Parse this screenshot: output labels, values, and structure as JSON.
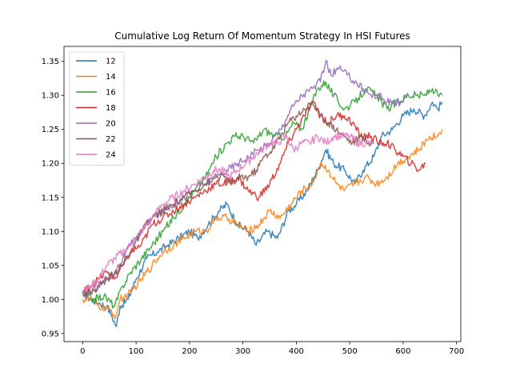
{
  "chart_data": {
    "type": "line",
    "title": "Cumulative Log Return Of Momentum Strategy In HSI Futures",
    "xlabel": "",
    "ylabel": "",
    "xlim": [
      -35,
      708
    ],
    "ylim": [
      0.938,
      1.372
    ],
    "xticks": [
      0,
      100,
      200,
      300,
      400,
      500,
      600,
      700
    ],
    "yticks": [
      0.95,
      1.0,
      1.05,
      1.1,
      1.15,
      1.2,
      1.25,
      1.3,
      1.35
    ],
    "ytick_labels": [
      "0.95",
      "1.00",
      "1.05",
      "1.10",
      "1.15",
      "1.20",
      "1.25",
      "1.30",
      "1.35"
    ],
    "grid": false,
    "legend": "top-left",
    "series": [
      {
        "name": "12",
        "color": "#1f77b4",
        "points": [
          [
            0,
            1.01
          ],
          [
            15,
            1.0
          ],
          [
            30,
            0.995
          ],
          [
            45,
            0.99
          ],
          [
            55,
            0.975
          ],
          [
            63,
            0.96
          ],
          [
            70,
            0.99
          ],
          [
            85,
            1.0
          ],
          [
            100,
            1.03
          ],
          [
            120,
            1.06
          ],
          [
            140,
            1.07
          ],
          [
            160,
            1.08
          ],
          [
            180,
            1.09
          ],
          [
            200,
            1.1
          ],
          [
            215,
            1.09
          ],
          [
            235,
            1.11
          ],
          [
            255,
            1.13
          ],
          [
            270,
            1.14
          ],
          [
            290,
            1.11
          ],
          [
            310,
            1.1
          ],
          [
            325,
            1.08
          ],
          [
            345,
            1.1
          ],
          [
            365,
            1.09
          ],
          [
            385,
            1.13
          ],
          [
            400,
            1.14
          ],
          [
            420,
            1.16
          ],
          [
            440,
            1.19
          ],
          [
            455,
            1.22
          ],
          [
            470,
            1.2
          ],
          [
            490,
            1.19
          ],
          [
            510,
            1.17
          ],
          [
            525,
            1.19
          ],
          [
            545,
            1.21
          ],
          [
            560,
            1.24
          ],
          [
            580,
            1.25
          ],
          [
            600,
            1.27
          ],
          [
            620,
            1.28
          ],
          [
            640,
            1.27
          ],
          [
            655,
            1.29
          ],
          [
            665,
            1.28
          ],
          [
            673,
            1.29
          ]
        ]
      },
      {
        "name": "14",
        "color": "#ff7f0e",
        "points": [
          [
            0,
            1.0
          ],
          [
            15,
            1.0
          ],
          [
            30,
            0.99
          ],
          [
            50,
            0.985
          ],
          [
            62,
            0.975
          ],
          [
            70,
            1.0
          ],
          [
            90,
            1.01
          ],
          [
            110,
            1.03
          ],
          [
            130,
            1.05
          ],
          [
            150,
            1.07
          ],
          [
            170,
            1.08
          ],
          [
            190,
            1.09
          ],
          [
            210,
            1.1
          ],
          [
            230,
            1.1
          ],
          [
            250,
            1.12
          ],
          [
            270,
            1.12
          ],
          [
            290,
            1.11
          ],
          [
            310,
            1.1
          ],
          [
            330,
            1.11
          ],
          [
            350,
            1.13
          ],
          [
            370,
            1.12
          ],
          [
            390,
            1.14
          ],
          [
            410,
            1.16
          ],
          [
            430,
            1.17
          ],
          [
            445,
            1.2
          ],
          [
            460,
            1.19
          ],
          [
            475,
            1.17
          ],
          [
            490,
            1.16
          ],
          [
            510,
            1.17
          ],
          [
            530,
            1.18
          ],
          [
            550,
            1.17
          ],
          [
            570,
            1.18
          ],
          [
            590,
            1.2
          ],
          [
            610,
            1.21
          ],
          [
            630,
            1.22
          ],
          [
            650,
            1.24
          ],
          [
            665,
            1.24
          ],
          [
            673,
            1.25
          ]
        ]
      },
      {
        "name": "16",
        "color": "#2ca02c",
        "points": [
          [
            0,
            1.01
          ],
          [
            20,
            1.0
          ],
          [
            40,
            1.005
          ],
          [
            60,
            0.99
          ],
          [
            75,
            1.02
          ],
          [
            90,
            1.04
          ],
          [
            110,
            1.06
          ],
          [
            130,
            1.08
          ],
          [
            150,
            1.1
          ],
          [
            170,
            1.12
          ],
          [
            190,
            1.14
          ],
          [
            210,
            1.16
          ],
          [
            230,
            1.18
          ],
          [
            250,
            1.21
          ],
          [
            270,
            1.23
          ],
          [
            285,
            1.24
          ],
          [
            300,
            1.24
          ],
          [
            320,
            1.23
          ],
          [
            340,
            1.25
          ],
          [
            360,
            1.24
          ],
          [
            380,
            1.24
          ],
          [
            395,
            1.26
          ],
          [
            410,
            1.25
          ],
          [
            425,
            1.28
          ],
          [
            440,
            1.31
          ],
          [
            455,
            1.32
          ],
          [
            470,
            1.3
          ],
          [
            490,
            1.28
          ],
          [
            510,
            1.29
          ],
          [
            530,
            1.31
          ],
          [
            550,
            1.3
          ],
          [
            570,
            1.28
          ],
          [
            590,
            1.29
          ],
          [
            610,
            1.3
          ],
          [
            625,
            1.3
          ],
          [
            640,
            1.3
          ],
          [
            655,
            1.31
          ],
          [
            665,
            1.3
          ],
          [
            673,
            1.3
          ]
        ]
      },
      {
        "name": "18",
        "color": "#d62728",
        "points": [
          [
            0,
            1.01
          ],
          [
            15,
            1.02
          ],
          [
            30,
            1.03
          ],
          [
            45,
            1.04
          ],
          [
            60,
            1.03
          ],
          [
            75,
            1.05
          ],
          [
            90,
            1.07
          ],
          [
            110,
            1.08
          ],
          [
            130,
            1.11
          ],
          [
            150,
            1.12
          ],
          [
            170,
            1.13
          ],
          [
            190,
            1.14
          ],
          [
            210,
            1.15
          ],
          [
            230,
            1.16
          ],
          [
            250,
            1.17
          ],
          [
            270,
            1.17
          ],
          [
            290,
            1.18
          ],
          [
            310,
            1.16
          ],
          [
            330,
            1.15
          ],
          [
            350,
            1.17
          ],
          [
            370,
            1.2
          ],
          [
            385,
            1.23
          ],
          [
            400,
            1.25
          ],
          [
            415,
            1.27
          ],
          [
            430,
            1.29
          ],
          [
            445,
            1.27
          ],
          [
            460,
            1.26
          ],
          [
            475,
            1.27
          ],
          [
            490,
            1.27
          ],
          [
            505,
            1.26
          ],
          [
            520,
            1.24
          ],
          [
            540,
            1.24
          ],
          [
            555,
            1.23
          ],
          [
            570,
            1.23
          ],
          [
            585,
            1.22
          ],
          [
            600,
            1.21
          ],
          [
            615,
            1.2
          ],
          [
            630,
            1.19
          ],
          [
            642,
            1.2
          ]
        ]
      },
      {
        "name": "20",
        "color": "#9467bd",
        "points": [
          [
            0,
            1.01
          ],
          [
            15,
            1.01
          ],
          [
            30,
            1.02
          ],
          [
            45,
            1.03
          ],
          [
            60,
            1.04
          ],
          [
            75,
            1.06
          ],
          [
            90,
            1.08
          ],
          [
            110,
            1.1
          ],
          [
            130,
            1.12
          ],
          [
            150,
            1.13
          ],
          [
            170,
            1.14
          ],
          [
            190,
            1.15
          ],
          [
            210,
            1.16
          ],
          [
            230,
            1.17
          ],
          [
            250,
            1.18
          ],
          [
            270,
            1.19
          ],
          [
            290,
            1.2
          ],
          [
            310,
            1.21
          ],
          [
            330,
            1.22
          ],
          [
            350,
            1.23
          ],
          [
            370,
            1.25
          ],
          [
            390,
            1.28
          ],
          [
            410,
            1.3
          ],
          [
            430,
            1.31
          ],
          [
            445,
            1.32
          ],
          [
            455,
            1.35
          ],
          [
            465,
            1.33
          ],
          [
            480,
            1.34
          ],
          [
            495,
            1.33
          ],
          [
            510,
            1.32
          ],
          [
            525,
            1.31
          ],
          [
            540,
            1.3
          ],
          [
            555,
            1.3
          ],
          [
            570,
            1.29
          ],
          [
            585,
            1.29
          ],
          [
            600,
            1.29
          ],
          [
            610,
            1.3
          ]
        ]
      },
      {
        "name": "22",
        "color": "#8c564b",
        "points": [
          [
            0,
            1.01
          ],
          [
            15,
            1.01
          ],
          [
            30,
            1.02
          ],
          [
            45,
            1.03
          ],
          [
            60,
            1.04
          ],
          [
            75,
            1.05
          ],
          [
            90,
            1.07
          ],
          [
            110,
            1.1
          ],
          [
            130,
            1.12
          ],
          [
            150,
            1.13
          ],
          [
            170,
            1.14
          ],
          [
            190,
            1.15
          ],
          [
            210,
            1.16
          ],
          [
            230,
            1.17
          ],
          [
            250,
            1.18
          ],
          [
            265,
            1.18
          ],
          [
            280,
            1.17
          ],
          [
            295,
            1.18
          ],
          [
            310,
            1.18
          ],
          [
            325,
            1.19
          ],
          [
            340,
            1.21
          ],
          [
            355,
            1.22
          ],
          [
            370,
            1.24
          ],
          [
            385,
            1.26
          ],
          [
            400,
            1.27
          ],
          [
            415,
            1.28
          ],
          [
            430,
            1.29
          ],
          [
            445,
            1.27
          ],
          [
            460,
            1.26
          ],
          [
            475,
            1.25
          ],
          [
            490,
            1.24
          ],
          [
            505,
            1.23
          ],
          [
            520,
            1.24
          ],
          [
            535,
            1.23
          ],
          [
            545,
            1.23
          ]
        ]
      },
      {
        "name": "24",
        "color": "#e377c2",
        "points": [
          [
            0,
            1.01
          ],
          [
            15,
            1.02
          ],
          [
            30,
            1.03
          ],
          [
            45,
            1.05
          ],
          [
            60,
            1.06
          ],
          [
            75,
            1.07
          ],
          [
            90,
            1.08
          ],
          [
            110,
            1.1
          ],
          [
            130,
            1.12
          ],
          [
            150,
            1.14
          ],
          [
            170,
            1.15
          ],
          [
            190,
            1.16
          ],
          [
            210,
            1.17
          ],
          [
            230,
            1.18
          ],
          [
            245,
            1.19
          ],
          [
            260,
            1.19
          ],
          [
            275,
            1.18
          ],
          [
            290,
            1.19
          ],
          [
            305,
            1.2
          ],
          [
            320,
            1.21
          ],
          [
            335,
            1.22
          ],
          [
            350,
            1.23
          ],
          [
            365,
            1.23
          ],
          [
            380,
            1.24
          ],
          [
            395,
            1.22
          ],
          [
            410,
            1.23
          ],
          [
            425,
            1.23
          ],
          [
            440,
            1.24
          ],
          [
            455,
            1.23
          ],
          [
            470,
            1.24
          ],
          [
            485,
            1.24
          ],
          [
            500,
            1.24
          ],
          [
            515,
            1.23
          ],
          [
            530,
            1.23
          ],
          [
            542,
            1.23
          ]
        ]
      }
    ]
  }
}
